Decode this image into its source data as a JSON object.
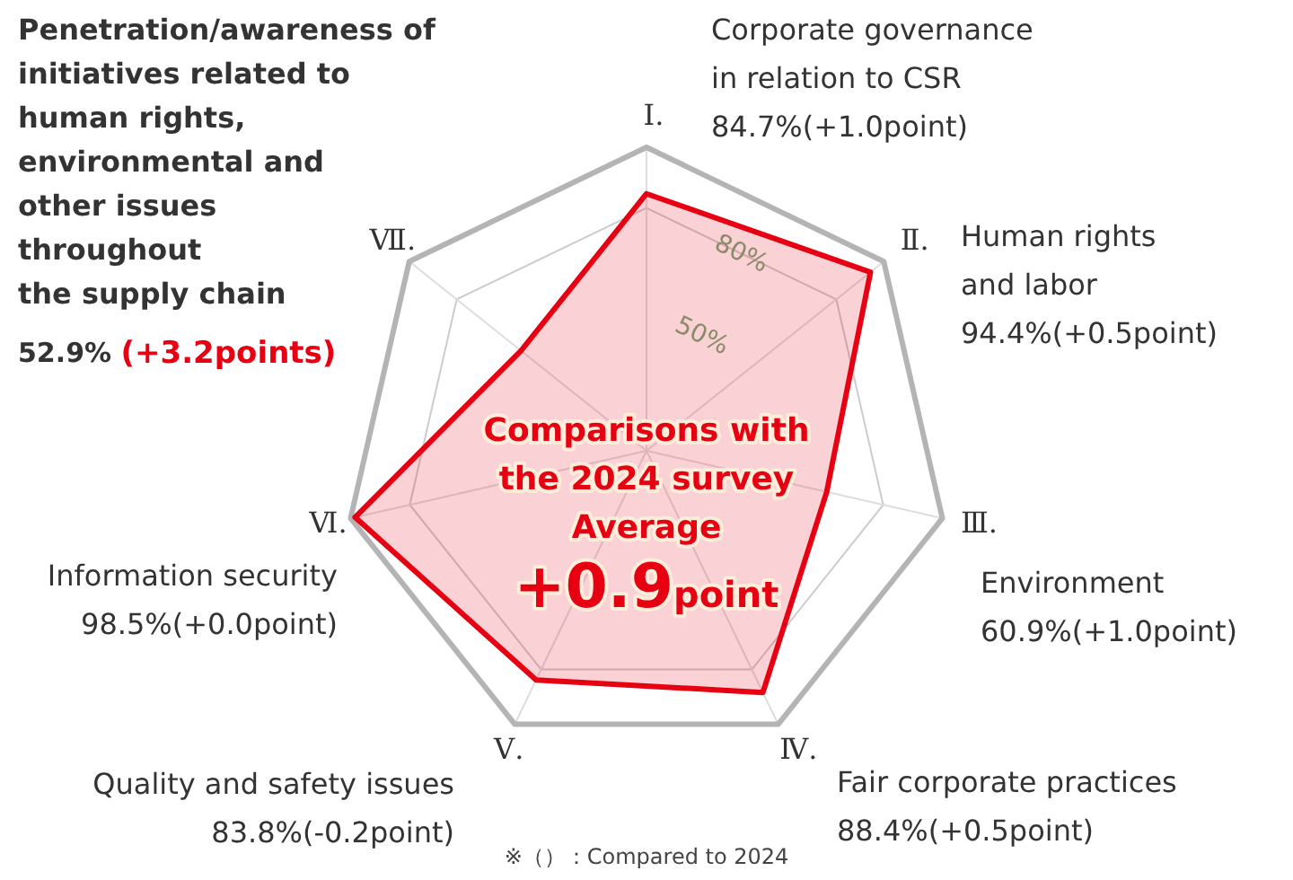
{
  "chart_data": {
    "type": "radar",
    "categories": [
      "Ⅰ.",
      "Ⅱ.",
      "Ⅲ.",
      "Ⅳ.",
      "Ⅴ.",
      "Ⅵ.",
      "Ⅶ."
    ],
    "series": [
      {
        "color": "#e60012",
        "values": [
          84.7,
          94.4,
          60.9,
          88.4,
          83.8,
          98.5,
          52.9
        ]
      }
    ],
    "ylim": [
      0,
      100
    ],
    "yticks": [
      {
        "value": 50,
        "label": "50%"
      },
      {
        "value": 80,
        "label": "80%"
      }
    ],
    "grid": true,
    "marker": "none",
    "annotations": [
      "Corporate governance\nin relation to CSR\n84.7%(+1.0point)",
      "Human rights\nand labor\n94.4%(+0.5point)",
      "Environment\n60.9%(+1.0point)",
      "Fair corporate practices\n88.4%(+0.5point)",
      "Quality and safety issues\n83.8%(-0.2point)",
      "Information security\n98.5%(+0.0point)",
      "Penetration/awareness of\ninitiatives related to\nhuman rights,\nenvironmental and\nother issues\nthroughout\nthe supply chain\n52.9% (+3.2points)",
      "Comparisons with\nthe 2024 survey\nAverage",
      "+0.9point",
      "※（）：Compared to 2024"
    ]
  }
}
